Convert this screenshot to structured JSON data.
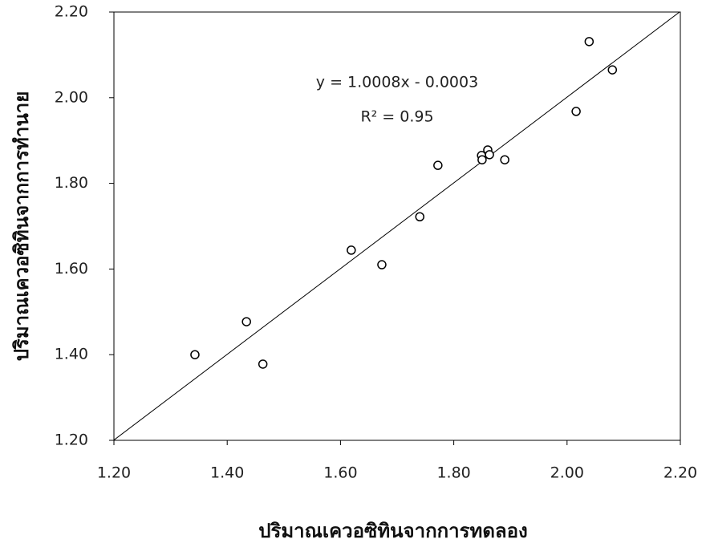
{
  "chart_data": {
    "type": "scatter",
    "x_label": "ปริมาณเควอซิทินจากการทดลอง",
    "y_label": "ปริมาณเควอซิทินจากการทำนาย",
    "x": [
      1.343,
      1.434,
      1.463,
      1.619,
      1.673,
      1.74,
      1.772,
      1.849,
      1.85,
      1.86,
      1.863,
      1.89,
      2.016,
      2.039,
      2.08
    ],
    "values": [
      1.4,
      1.477,
      1.378,
      1.644,
      1.61,
      1.722,
      1.842,
      1.865,
      1.855,
      1.878,
      1.867,
      1.855,
      1.968,
      2.131,
      2.065
    ],
    "marker_color": "#000000",
    "trendline": {
      "equation": "y = 1.0008x - 0.0003",
      "r2": "R² = 0.95",
      "slope": 1.0008,
      "intercept": -0.0003,
      "color": "#000000"
    },
    "xlim": [
      1.2,
      2.2
    ],
    "ylim": [
      1.2,
      2.2
    ],
    "xticks": [
      {
        "value": 1.2,
        "label": "1.20"
      },
      {
        "value": 1.4,
        "label": "1.40"
      },
      {
        "value": 1.6,
        "label": "1.60"
      },
      {
        "value": 1.8,
        "label": "1.80"
      },
      {
        "value": 2.0,
        "label": "2.00"
      },
      {
        "value": 2.2,
        "label": "2.20"
      }
    ],
    "yticks": [
      {
        "value": 1.2,
        "label": "1.20"
      },
      {
        "value": 1.4,
        "label": "1.40"
      },
      {
        "value": 1.6,
        "label": "1.60"
      },
      {
        "value": 1.8,
        "label": "1.80"
      },
      {
        "value": 2.0,
        "label": "2.00"
      },
      {
        "value": 2.2,
        "label": "2.20"
      }
    ]
  }
}
